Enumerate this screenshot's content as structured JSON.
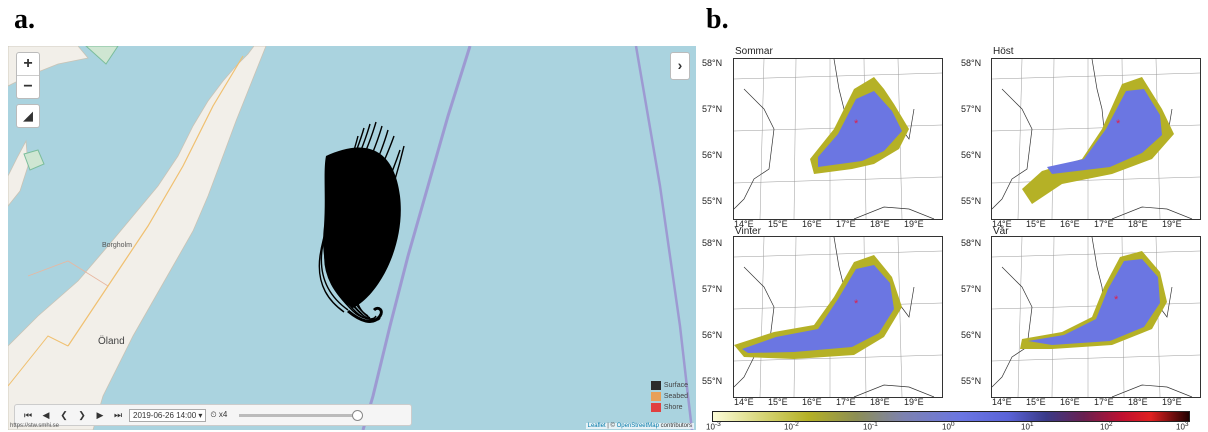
{
  "panel_a": {
    "label": "a.",
    "zoom_in": "+",
    "zoom_out": "−",
    "place_names": {
      "town": "Borgholm",
      "island": "Öland"
    },
    "legend": [
      {
        "name": "Surface",
        "color": "#2b2b2b"
      },
      {
        "name": "Seabed",
        "color": "#e8a05a"
      },
      {
        "name": "Shore",
        "color": "#e04040"
      }
    ],
    "timebar": {
      "datetime": "2019-06-26 14:00",
      "speed": "x4"
    },
    "url": "https://stw.smhi.se",
    "attribution": {
      "leaflet": "Leaflet",
      "sep": " | © ",
      "osm": "OpenStreetMap",
      "tail": " contributors"
    },
    "colors": {
      "water": "#aad3df",
      "land": "#f2efe9",
      "tracks": "#000000",
      "boundary": "#9b8fd0"
    }
  },
  "panel_b": {
    "label": "b.",
    "subplots": [
      {
        "title": "Sommar"
      },
      {
        "title": "Höst"
      },
      {
        "title": "Vinter"
      },
      {
        "title": "Vår"
      }
    ],
    "yticks": [
      "58°N",
      "57°N",
      "56°N",
      "55°N"
    ],
    "xticks": [
      "14°E",
      "15°E",
      "16°E",
      "17°E",
      "18°E",
      "19°E"
    ],
    "colorbar_ticks": [
      "10",
      "10",
      "10",
      "10",
      "10",
      "10",
      "10"
    ],
    "colorbar_exponents": [
      "-3",
      "-2",
      "-1",
      "0",
      "1",
      "2",
      "3"
    ],
    "colors": {
      "core": "#6b76e2",
      "fringe": "#b5b126",
      "star": "#e0204a"
    }
  }
}
